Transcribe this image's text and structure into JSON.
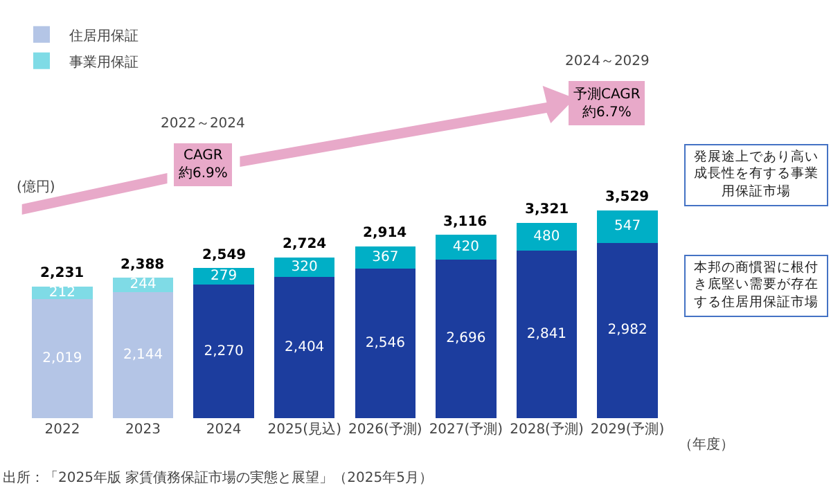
{
  "chart_data": {
    "type": "bar",
    "stacked": true,
    "legend": "top left",
    "grid": false,
    "ylabel": "(億円)",
    "xlabel": "（年度）",
    "categories": [
      "2022",
      "2023",
      "2024",
      "2025(見込)",
      "2026(予測)",
      "2027(予測)",
      "2028(予測)",
      "2029(予測)"
    ],
    "series": [
      {
        "name": "住居用保証",
        "colors": [
          "#b4c5e6",
          "#b4c5e6",
          "#1c3d9e",
          "#1c3d9e",
          "#1c3d9e",
          "#1c3d9e",
          "#1c3d9e",
          "#1c3d9e"
        ],
        "values": [
          2019,
          2144,
          2270,
          2404,
          2546,
          2696,
          2841,
          2982
        ],
        "value_labels": [
          "2,019",
          "2,144",
          "2,270",
          "2,404",
          "2,546",
          "2,696",
          "2,841",
          "2,982"
        ]
      },
      {
        "name": "事業用保証",
        "colors": [
          "#7fdbe6",
          "#7fdbe6",
          "#00afc6",
          "#00afc6",
          "#00afc6",
          "#00afc6",
          "#00afc6",
          "#00afc6"
        ],
        "values": [
          212,
          244,
          279,
          320,
          367,
          420,
          480,
          547
        ],
        "value_labels": [
          "212",
          "244",
          "279",
          "320",
          "367",
          "420",
          "480",
          "547"
        ]
      }
    ],
    "totals": [
      "2,231",
      "2,388",
      "2,549",
      "2,724",
      "2,914",
      "3,116",
      "3,321",
      "3,529"
    ],
    "annotations": [
      "2022～2024",
      "CAGR\n約6.9%",
      "2024～2029",
      "予測CAGR\n約6.7%",
      "発展途上であり高い成長性を有する事業用保証市場",
      "本邦の商慣習に根付き底堅い需要が存在する住居用保証市場",
      "出所：「2025年版 家賃債務保証市場の実態と展望」（2025年5月）"
    ]
  }
}
